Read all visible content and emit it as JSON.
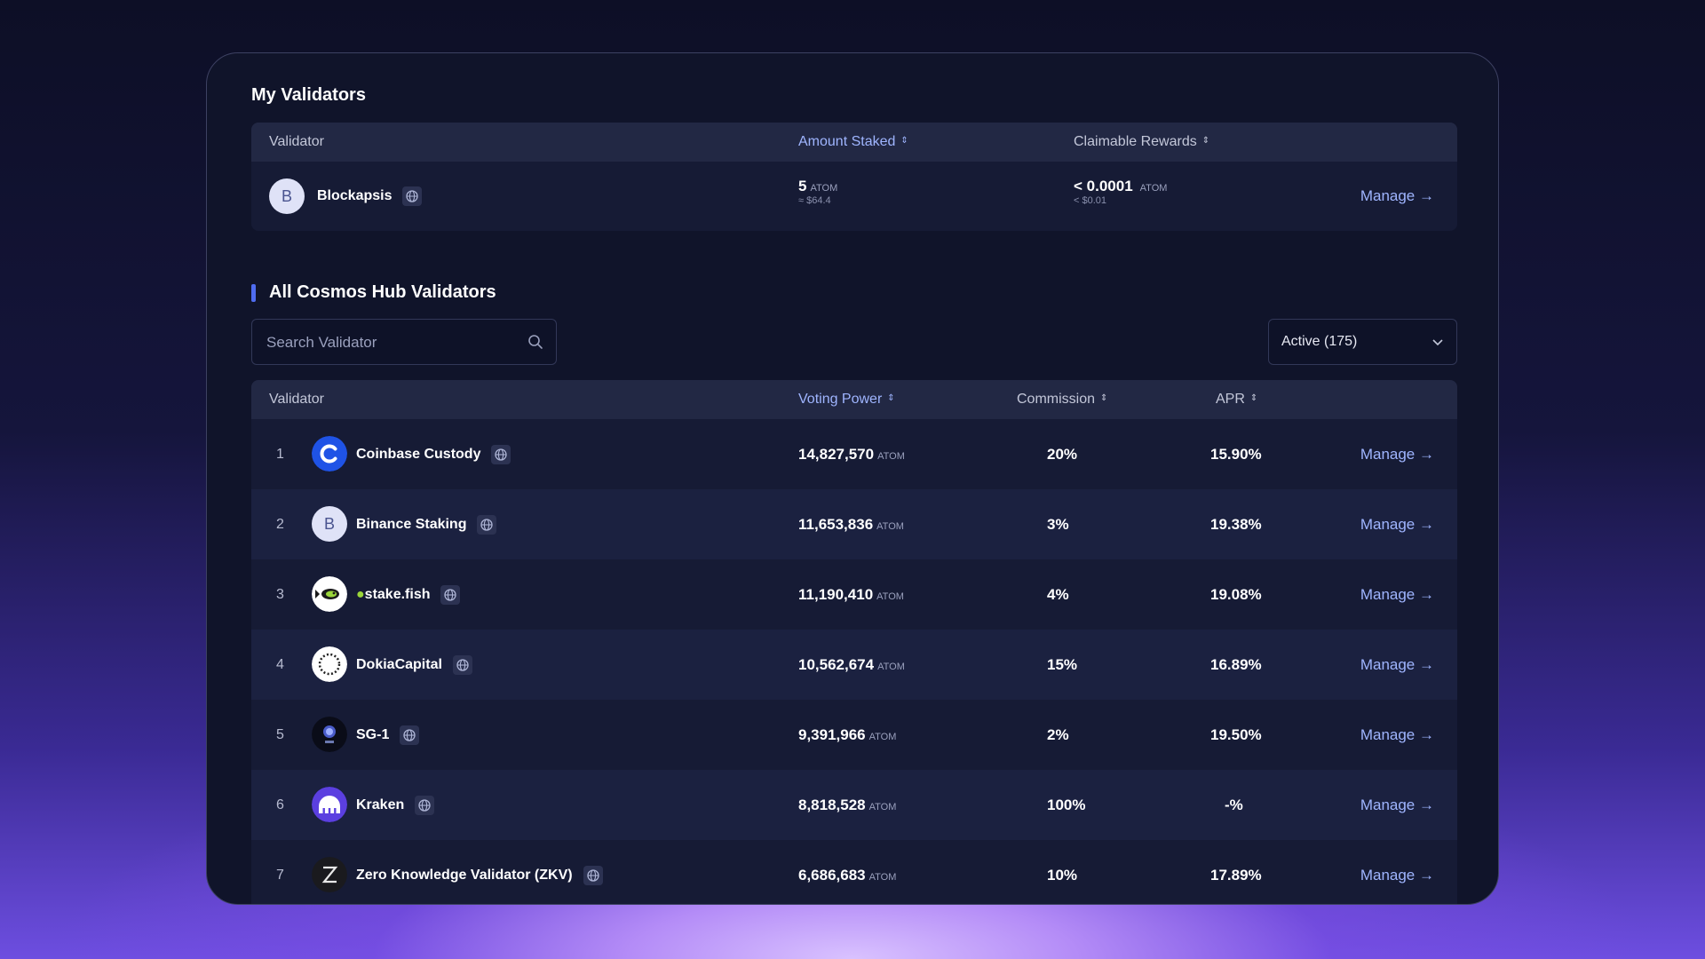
{
  "my_validators": {
    "title": "My Validators",
    "headers": {
      "validator": "Validator",
      "amount_staked": "Amount Staked",
      "claimable_rewards": "Claimable Rewards"
    },
    "row": {
      "avatar_letter": "B",
      "name": "Blockapsis",
      "amount": "5",
      "amount_unit": "ATOM",
      "amount_usd": "≈ $64.4",
      "rewards": "< 0.0001",
      "rewards_unit": "ATOM",
      "rewards_usd": "< $0.01",
      "manage": "Manage →"
    }
  },
  "all_validators": {
    "title": "All Cosmos Hub Validators",
    "search_placeholder": "Search Validator",
    "filter_selected": "Active (175)",
    "headers": {
      "validator": "Validator",
      "voting_power": "Voting Power",
      "commission": "Commission",
      "apr": "APR"
    },
    "rows": [
      {
        "rank": "1",
        "name": "Coinbase Custody",
        "voting_power": "14,827,570",
        "unit": "ATOM",
        "commission": "20%",
        "apr": "15.90%",
        "manage": "Manage →",
        "icon": "coinbase-icon"
      },
      {
        "rank": "2",
        "name": "Binance Staking",
        "voting_power": "11,653,836",
        "unit": "ATOM",
        "commission": "3%",
        "apr": "19.38%",
        "manage": "Manage →",
        "icon": "letter-avatar",
        "letter": "B"
      },
      {
        "rank": "3",
        "name": "stake.fish",
        "voting_power": "11,190,410",
        "unit": "ATOM",
        "commission": "4%",
        "apr": "19.08%",
        "manage": "Manage →",
        "icon": "fish-icon"
      },
      {
        "rank": "4",
        "name": "DokiaCapital",
        "voting_power": "10,562,674",
        "unit": "ATOM",
        "commission": "15%",
        "apr": "16.89%",
        "manage": "Manage →",
        "icon": "dokia-icon"
      },
      {
        "rank": "5",
        "name": "SG-1",
        "voting_power": "9,391,966",
        "unit": "ATOM",
        "commission": "2%",
        "apr": "19.50%",
        "manage": "Manage →",
        "icon": "sg1-icon"
      },
      {
        "rank": "6",
        "name": "Kraken",
        "voting_power": "8,818,528",
        "unit": "ATOM",
        "commission": "100%",
        "apr": "-%",
        "manage": "Manage →",
        "icon": "kraken-icon"
      },
      {
        "rank": "7",
        "name": "Zero Knowledge Validator (ZKV)",
        "voting_power": "6,686,683",
        "unit": "ATOM",
        "commission": "10%",
        "apr": "17.89%",
        "manage": "Manage →",
        "icon": "zkv-icon"
      }
    ]
  },
  "colors": {
    "accent": "#9fb5ff",
    "card_bg": "#10142a",
    "header_bg": "#222844",
    "section_bar": "#4f6cf0"
  }
}
